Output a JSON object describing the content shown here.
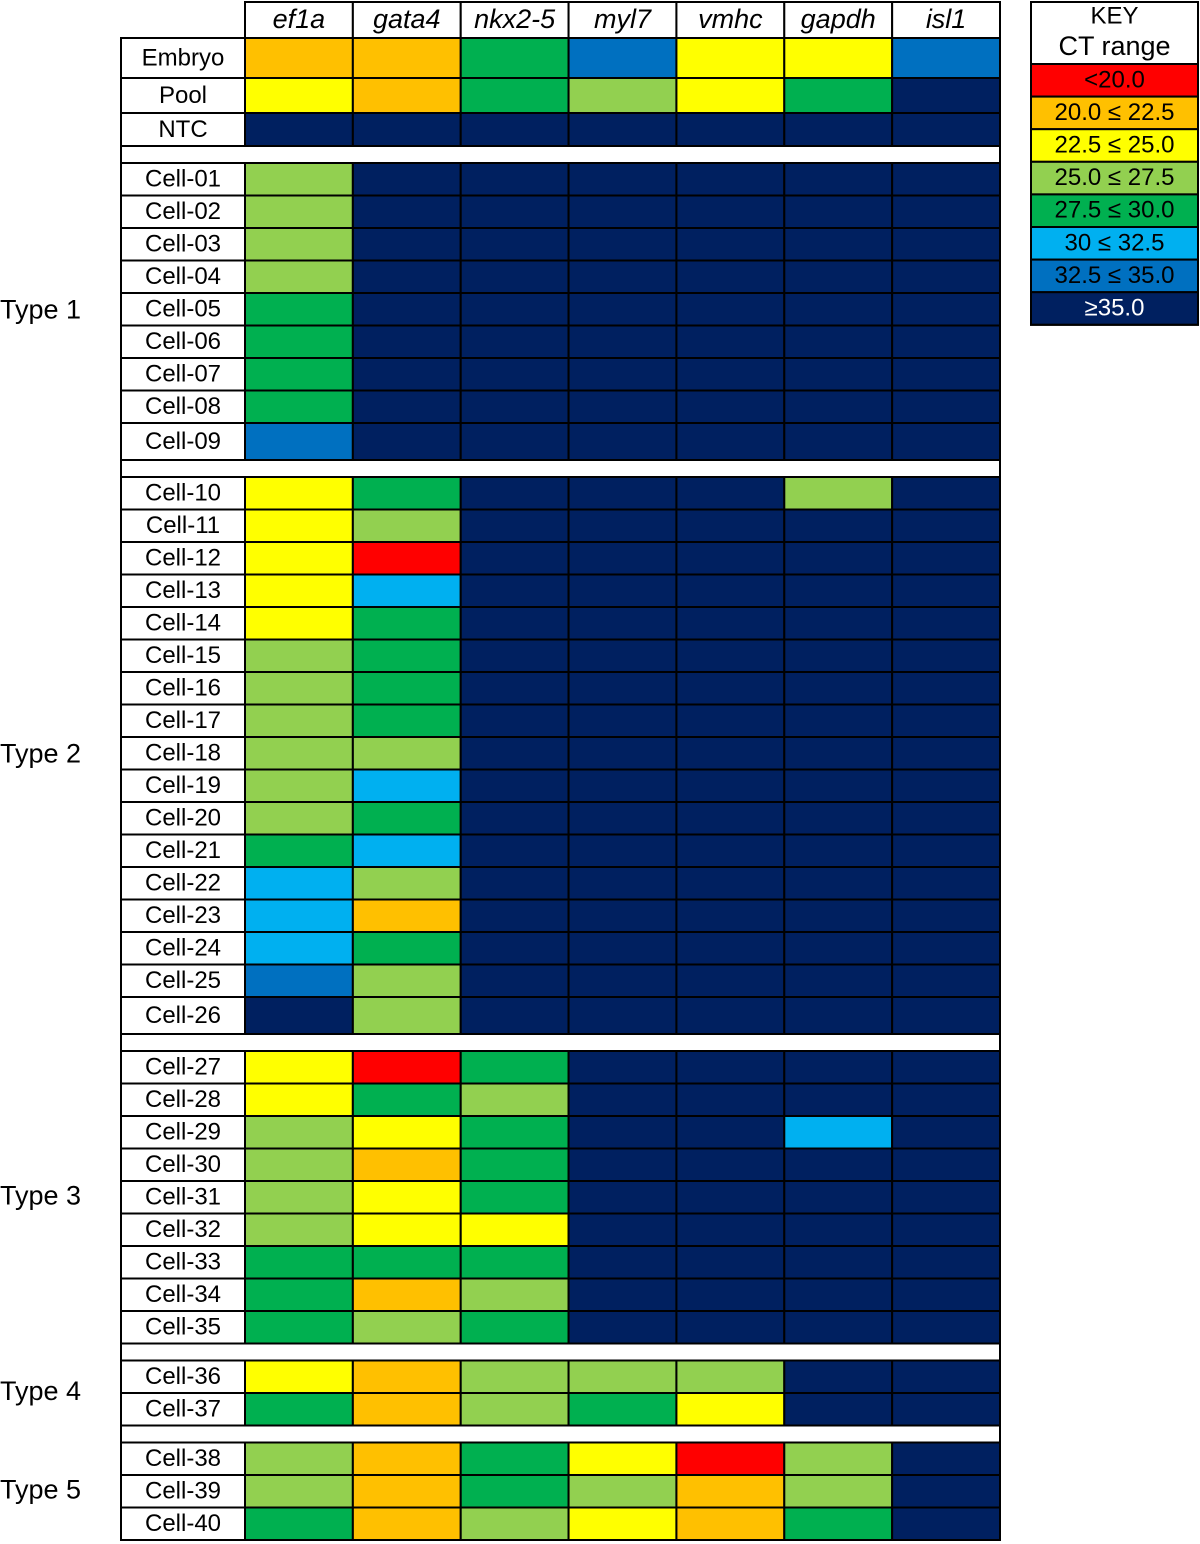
{
  "columns": [
    "ef1a",
    "gata4",
    "nkx2-5",
    "myl7",
    "vmhc",
    "gapdh",
    "isl1"
  ],
  "key": {
    "title": "KEY",
    "subtitle": "CT range",
    "entries": [
      {
        "label": "<20.0",
        "color": "#ff0000",
        "text_color": "#000000"
      },
      {
        "label": "20.0 ≤ 22.5",
        "color": "#ffc000",
        "text_color": "#000000"
      },
      {
        "label": "22.5 ≤ 25.0",
        "color": "#ffff00",
        "text_color": "#000000"
      },
      {
        "label": "25.0 ≤ 27.5",
        "color": "#92d050",
        "text_color": "#000000"
      },
      {
        "label": "27.5 ≤ 30.0",
        "color": "#00b050",
        "text_color": "#000000"
      },
      {
        "label": "30 ≤ 32.5",
        "color": "#00b0f0",
        "text_color": "#000000"
      },
      {
        "label": "32.5 ≤ 35.0",
        "color": "#0070c0",
        "text_color": "#000000"
      },
      {
        "label": "≥35.0",
        "color": "#002060",
        "text_color": "#ffffff"
      }
    ]
  },
  "controls": [
    {
      "name": "Embryo",
      "cells": [
        1,
        1,
        4,
        6,
        2,
        2,
        6
      ]
    },
    {
      "name": "Pool",
      "cells": [
        2,
        1,
        4,
        3,
        2,
        4,
        7
      ]
    },
    {
      "name": "NTC",
      "cells": [
        7,
        7,
        7,
        7,
        7,
        7,
        7
      ]
    }
  ],
  "groups": [
    {
      "label": "Type 1",
      "rows": [
        {
          "name": "Cell-01",
          "cells": [
            3,
            7,
            7,
            7,
            7,
            7,
            7
          ]
        },
        {
          "name": "Cell-02",
          "cells": [
            3,
            7,
            7,
            7,
            7,
            7,
            7
          ]
        },
        {
          "name": "Cell-03",
          "cells": [
            3,
            7,
            7,
            7,
            7,
            7,
            7
          ]
        },
        {
          "name": "Cell-04",
          "cells": [
            3,
            7,
            7,
            7,
            7,
            7,
            7
          ]
        },
        {
          "name": "Cell-05",
          "cells": [
            4,
            7,
            7,
            7,
            7,
            7,
            7
          ]
        },
        {
          "name": "Cell-06",
          "cells": [
            4,
            7,
            7,
            7,
            7,
            7,
            7
          ]
        },
        {
          "name": "Cell-07",
          "cells": [
            4,
            7,
            7,
            7,
            7,
            7,
            7
          ]
        },
        {
          "name": "Cell-08",
          "cells": [
            4,
            7,
            7,
            7,
            7,
            7,
            7
          ]
        },
        {
          "name": "Cell-09",
          "cells": [
            6,
            7,
            7,
            7,
            7,
            7,
            7
          ]
        }
      ]
    },
    {
      "label": "Type 2",
      "rows": [
        {
          "name": "Cell-10",
          "cells": [
            2,
            4,
            7,
            7,
            7,
            3,
            7
          ]
        },
        {
          "name": "Cell-11",
          "cells": [
            2,
            3,
            7,
            7,
            7,
            7,
            7
          ]
        },
        {
          "name": "Cell-12",
          "cells": [
            2,
            0,
            7,
            7,
            7,
            7,
            7
          ]
        },
        {
          "name": "Cell-13",
          "cells": [
            2,
            5,
            7,
            7,
            7,
            7,
            7
          ]
        },
        {
          "name": "Cell-14",
          "cells": [
            2,
            4,
            7,
            7,
            7,
            7,
            7
          ]
        },
        {
          "name": "Cell-15",
          "cells": [
            3,
            4,
            7,
            7,
            7,
            7,
            7
          ]
        },
        {
          "name": "Cell-16",
          "cells": [
            3,
            4,
            7,
            7,
            7,
            7,
            7
          ]
        },
        {
          "name": "Cell-17",
          "cells": [
            3,
            4,
            7,
            7,
            7,
            7,
            7
          ]
        },
        {
          "name": "Cell-18",
          "cells": [
            3,
            3,
            7,
            7,
            7,
            7,
            7
          ]
        },
        {
          "name": "Cell-19",
          "cells": [
            3,
            5,
            7,
            7,
            7,
            7,
            7
          ]
        },
        {
          "name": "Cell-20",
          "cells": [
            3,
            4,
            7,
            7,
            7,
            7,
            7
          ]
        },
        {
          "name": "Cell-21",
          "cells": [
            4,
            5,
            7,
            7,
            7,
            7,
            7
          ]
        },
        {
          "name": "Cell-22",
          "cells": [
            5,
            3,
            7,
            7,
            7,
            7,
            7
          ]
        },
        {
          "name": "Cell-23",
          "cells": [
            5,
            1,
            7,
            7,
            7,
            7,
            7
          ]
        },
        {
          "name": "Cell-24",
          "cells": [
            5,
            4,
            7,
            7,
            7,
            7,
            7
          ]
        },
        {
          "name": "Cell-25",
          "cells": [
            6,
            3,
            7,
            7,
            7,
            7,
            7
          ]
        },
        {
          "name": "Cell-26",
          "cells": [
            7,
            3,
            7,
            7,
            7,
            7,
            7
          ]
        }
      ]
    },
    {
      "label": "Type 3",
      "rows": [
        {
          "name": "Cell-27",
          "cells": [
            2,
            0,
            4,
            7,
            7,
            7,
            7
          ]
        },
        {
          "name": "Cell-28",
          "cells": [
            2,
            4,
            3,
            7,
            7,
            7,
            7
          ]
        },
        {
          "name": "Cell-29",
          "cells": [
            3,
            2,
            4,
            7,
            7,
            5,
            7
          ]
        },
        {
          "name": "Cell-30",
          "cells": [
            3,
            1,
            4,
            7,
            7,
            7,
            7
          ]
        },
        {
          "name": "Cell-31",
          "cells": [
            3,
            2,
            4,
            7,
            7,
            7,
            7
          ]
        },
        {
          "name": "Cell-32",
          "cells": [
            3,
            2,
            2,
            7,
            7,
            7,
            7
          ]
        },
        {
          "name": "Cell-33",
          "cells": [
            4,
            4,
            4,
            7,
            7,
            7,
            7
          ]
        },
        {
          "name": "Cell-34",
          "cells": [
            4,
            1,
            3,
            7,
            7,
            7,
            7
          ]
        },
        {
          "name": "Cell-35",
          "cells": [
            4,
            3,
            4,
            7,
            7,
            7,
            7
          ]
        }
      ]
    },
    {
      "label": "Type 4",
      "rows": [
        {
          "name": "Cell-36",
          "cells": [
            2,
            1,
            3,
            3,
            3,
            7,
            7
          ]
        },
        {
          "name": "Cell-37",
          "cells": [
            4,
            1,
            3,
            4,
            2,
            7,
            7
          ]
        }
      ]
    },
    {
      "label": "Type 5",
      "rows": [
        {
          "name": "Cell-38",
          "cells": [
            3,
            1,
            4,
            2,
            0,
            3,
            7
          ]
        },
        {
          "name": "Cell-39",
          "cells": [
            3,
            1,
            4,
            3,
            1,
            3,
            7
          ]
        },
        {
          "name": "Cell-40",
          "cells": [
            4,
            1,
            3,
            2,
            1,
            4,
            7
          ]
        }
      ]
    }
  ]
}
